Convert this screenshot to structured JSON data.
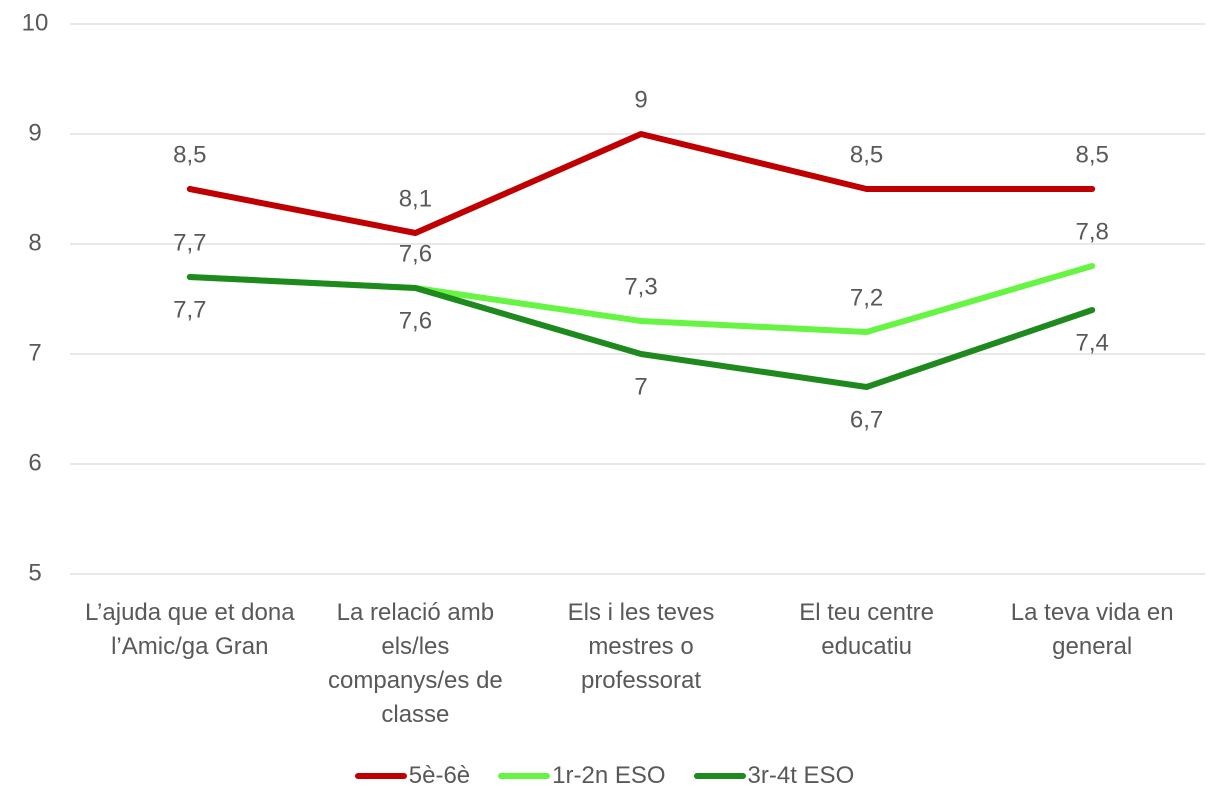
{
  "chart_data": {
    "type": "line",
    "categories": [
      "L’ajuda que et dona l’Amic/ga Gran",
      "La relació amb els/les companys/es de classe",
      "Els i les teves mestres o professorat",
      "El teu centre educatiu",
      "La teva vida en general"
    ],
    "series": [
      {
        "name": "5è-6è",
        "color": "#c00000",
        "values": [
          8.5,
          8.1,
          9,
          8.5,
          8.5
        ],
        "value_labels": [
          "8,5",
          "8,1",
          "9",
          "8,5",
          "8,5"
        ],
        "label_position": "above"
      },
      {
        "name": "1r-2n ESO",
        "color": "#66f542",
        "values": [
          7.7,
          7.6,
          7.3,
          7.2,
          7.8
        ],
        "value_labels": [
          "7,7",
          "7,6",
          "7,3",
          "7,2",
          "7,8"
        ],
        "label_position": "above"
      },
      {
        "name": "3r-4t ESO",
        "color": "#1e8a1e",
        "values": [
          7.7,
          7.6,
          7,
          6.7,
          7.4
        ],
        "value_labels": [
          "7,7",
          "7,6",
          "7",
          "6,7",
          "7,4"
        ],
        "label_position": "below"
      }
    ],
    "ylim": [
      5,
      10
    ],
    "yticks": [
      5,
      6,
      7,
      8,
      9,
      10
    ],
    "grid": true,
    "legend": "bottom"
  }
}
